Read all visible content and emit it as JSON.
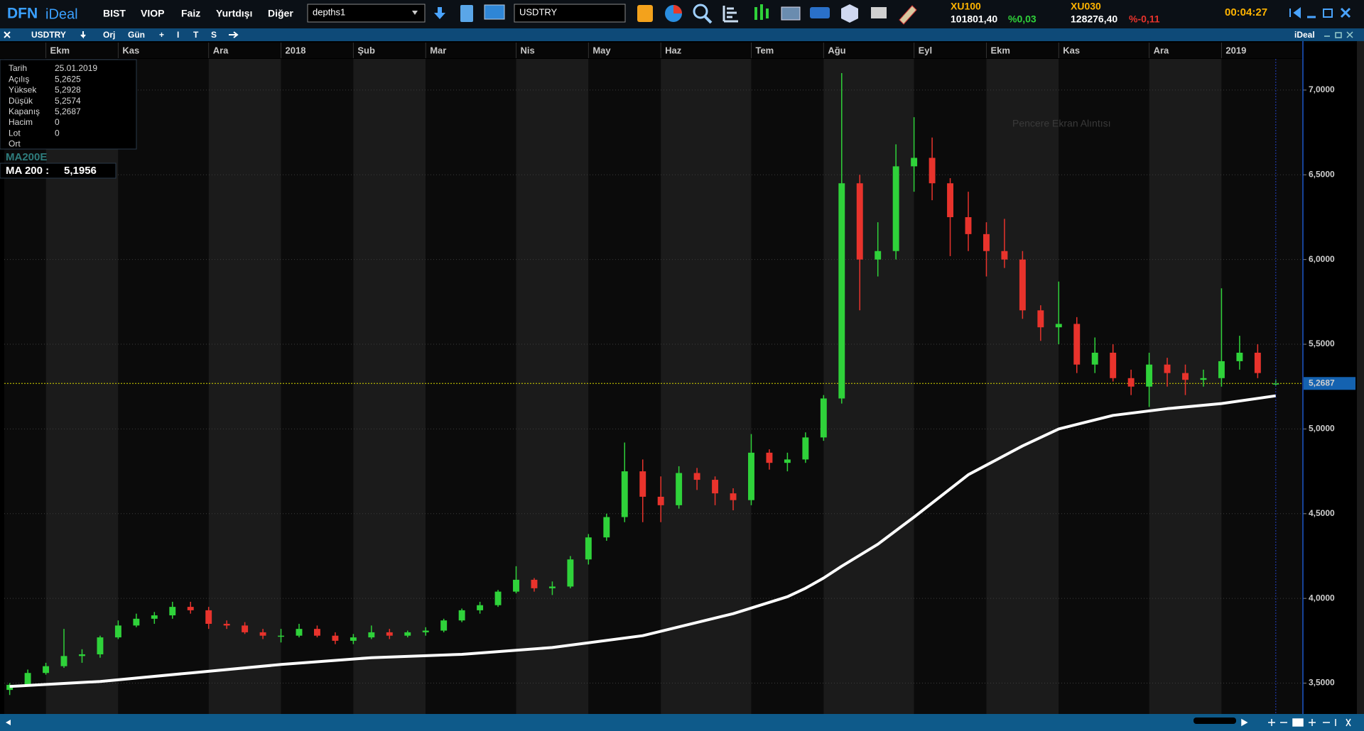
{
  "toolbar": {
    "logo_dfn": "DFN",
    "logo_ideal": "iDeal",
    "menu": [
      "BIST",
      "VIOP",
      "Faiz",
      "Yurtdışı",
      "Diğer"
    ],
    "layout_select": "depths1",
    "symbol_input": "USDTRY",
    "tickers": [
      {
        "name": "XU100",
        "price": "101801,40",
        "change": "%0,03"
      },
      {
        "name": "XU030",
        "price": "128276,40",
        "change": "%-0,11"
      }
    ],
    "clock": "00:04:27"
  },
  "window": {
    "title": "USDTRY",
    "buttons": [
      "Orj",
      "Gün",
      "I",
      "T",
      "S"
    ],
    "brand": "iDeal",
    "overlay_text": "Pencere Ekran Alıntısı"
  },
  "info_box": {
    "rows": [
      [
        "Tarih",
        "25.01.2019"
      ],
      [
        "Açılış",
        "5,2625"
      ],
      [
        "Yüksek",
        "5,2928"
      ],
      [
        "Düşük",
        "5,2574"
      ],
      [
        "Kapanış",
        "5,2687"
      ],
      [
        "Hacim",
        "0"
      ],
      [
        "Lot",
        "0"
      ],
      [
        "Ort"
      ]
    ]
  },
  "indicator": {
    "name": "MA200E",
    "label": "MA 200 :",
    "value": "5,1956"
  },
  "chart_data": {
    "type": "candlestick",
    "up_color": "#2fd23a",
    "down_color": "#e8332c",
    "grid": true,
    "open": [
      3.46,
      3.49,
      3.56,
      3.6,
      3.66,
      3.67,
      3.77,
      3.84,
      3.88,
      3.9,
      3.95,
      3.93,
      3.85,
      3.84,
      3.8,
      3.78,
      3.78,
      3.82,
      3.78,
      3.75,
      3.77,
      3.8,
      3.78,
      3.8,
      3.81,
      3.87,
      3.93,
      3.96,
      4.04,
      4.11,
      4.06,
      4.07,
      4.23,
      4.36,
      4.48,
      4.75,
      4.6,
      4.55,
      4.74,
      4.7,
      4.62,
      4.58,
      4.86,
      4.8,
      4.82,
      4.95,
      5.18,
      6.45,
      6.0,
      6.05,
      6.55,
      6.6,
      6.45,
      6.25,
      6.15,
      6.05,
      6.0,
      5.7,
      5.6,
      5.62,
      5.38,
      5.45,
      5.3,
      5.25,
      5.38,
      5.33,
      5.29,
      5.3,
      5.4,
      5.45,
      5.2625
    ],
    "high": [
      3.5,
      3.58,
      3.62,
      3.82,
      3.7,
      3.78,
      3.87,
      3.91,
      3.92,
      3.98,
      3.98,
      3.95,
      3.87,
      3.86,
      3.82,
      3.82,
      3.85,
      3.84,
      3.8,
      3.79,
      3.84,
      3.82,
      3.81,
      3.83,
      3.88,
      3.94,
      3.98,
      4.05,
      4.19,
      4.12,
      4.1,
      4.25,
      4.38,
      4.5,
      4.92,
      4.82,
      4.72,
      4.78,
      4.77,
      4.72,
      4.65,
      4.97,
      4.88,
      4.86,
      4.98,
      5.2,
      7.1,
      6.5,
      6.22,
      6.68,
      6.84,
      6.72,
      6.48,
      6.4,
      6.22,
      6.24,
      6.05,
      5.73,
      5.87,
      5.66,
      5.54,
      5.5,
      5.35,
      5.45,
      5.42,
      5.38,
      5.35,
      5.83,
      5.55,
      5.5,
      5.2928
    ],
    "low": [
      3.43,
      3.48,
      3.55,
      3.59,
      3.62,
      3.65,
      3.76,
      3.83,
      3.85,
      3.88,
      3.91,
      3.82,
      3.82,
      3.79,
      3.76,
      3.74,
      3.77,
      3.77,
      3.73,
      3.73,
      3.76,
      3.76,
      3.77,
      3.78,
      3.8,
      3.86,
      3.91,
      3.95,
      4.03,
      4.04,
      4.02,
      4.06,
      4.2,
      4.34,
      4.45,
      4.45,
      4.45,
      4.53,
      4.64,
      4.55,
      4.52,
      4.55,
      4.76,
      4.75,
      4.8,
      4.93,
      5.15,
      5.7,
      5.9,
      6.0,
      6.4,
      6.35,
      6.02,
      6.05,
      5.9,
      5.95,
      5.65,
      5.52,
      5.5,
      5.33,
      5.33,
      5.28,
      5.2,
      5.13,
      5.25,
      5.2,
      5.25,
      5.25,
      5.35,
      5.3,
      5.2574
    ],
    "close": [
      3.49,
      3.56,
      3.6,
      3.66,
      3.67,
      3.77,
      3.84,
      3.88,
      3.9,
      3.95,
      3.93,
      3.85,
      3.84,
      3.8,
      3.78,
      3.78,
      3.82,
      3.78,
      3.75,
      3.77,
      3.8,
      3.78,
      3.8,
      3.81,
      3.87,
      3.93,
      3.96,
      4.04,
      4.11,
      4.06,
      4.07,
      4.23,
      4.36,
      4.48,
      4.75,
      4.6,
      4.55,
      4.74,
      4.7,
      4.62,
      4.58,
      4.86,
      4.8,
      4.82,
      4.95,
      5.18,
      6.45,
      6.0,
      6.05,
      6.55,
      6.6,
      6.45,
      6.25,
      6.15,
      6.05,
      6.0,
      5.7,
      5.6,
      5.62,
      5.38,
      5.45,
      5.3,
      5.25,
      5.38,
      5.33,
      5.29,
      5.3,
      5.4,
      5.45,
      5.33,
      5.2687
    ],
    "ma": {
      "color": "#ffffff",
      "x": [
        0,
        5,
        10,
        15,
        20,
        25,
        30,
        35,
        40,
        43,
        44,
        45,
        46,
        48,
        50,
        53,
        56,
        58,
        61,
        64,
        67,
        70
      ],
      "values": [
        3.48,
        3.51,
        3.56,
        3.61,
        3.65,
        3.67,
        3.71,
        3.78,
        3.91,
        4.01,
        4.06,
        4.12,
        4.19,
        4.32,
        4.48,
        4.73,
        4.9,
        5.0,
        5.08,
        5.12,
        5.15,
        5.1956
      ]
    },
    "last_price": {
      "value": 5.2687,
      "label": "5,2687"
    },
    "xlim": [
      -0.3,
      71.5
    ],
    "xticks": [
      {
        "value": 2,
        "label": "Ekm"
      },
      {
        "value": 6,
        "label": "Kas"
      },
      {
        "value": 11,
        "label": "Ara"
      },
      {
        "value": 15,
        "label": "2018"
      },
      {
        "value": 19,
        "label": "Şub"
      },
      {
        "value": 23,
        "label": "Mar"
      },
      {
        "value": 28,
        "label": "Nis"
      },
      {
        "value": 32,
        "label": "May"
      },
      {
        "value": 36,
        "label": "Haz"
      },
      {
        "value": 41,
        "label": "Tem"
      },
      {
        "value": 45,
        "label": "Ağu"
      },
      {
        "value": 50,
        "label": "Eyl"
      },
      {
        "value": 54,
        "label": "Ekm"
      },
      {
        "value": 58,
        "label": "Kas"
      },
      {
        "value": 63,
        "label": "Ara"
      },
      {
        "value": 67,
        "label": "2019"
      }
    ],
    "ylim": [
      3.318,
      7.184
    ],
    "yticks": [
      {
        "value": 3.5,
        "label": "3,5000"
      },
      {
        "value": 4,
        "label": "4,0000"
      },
      {
        "value": 4.5,
        "label": "4,5000"
      },
      {
        "value": 5,
        "label": "5,0000"
      },
      {
        "value": 5.5,
        "label": "5,5000"
      },
      {
        "value": 6,
        "label": "6,0000"
      },
      {
        "value": 6.5,
        "label": "6,5000"
      },
      {
        "value": 7,
        "label": "7,0000"
      }
    ]
  }
}
